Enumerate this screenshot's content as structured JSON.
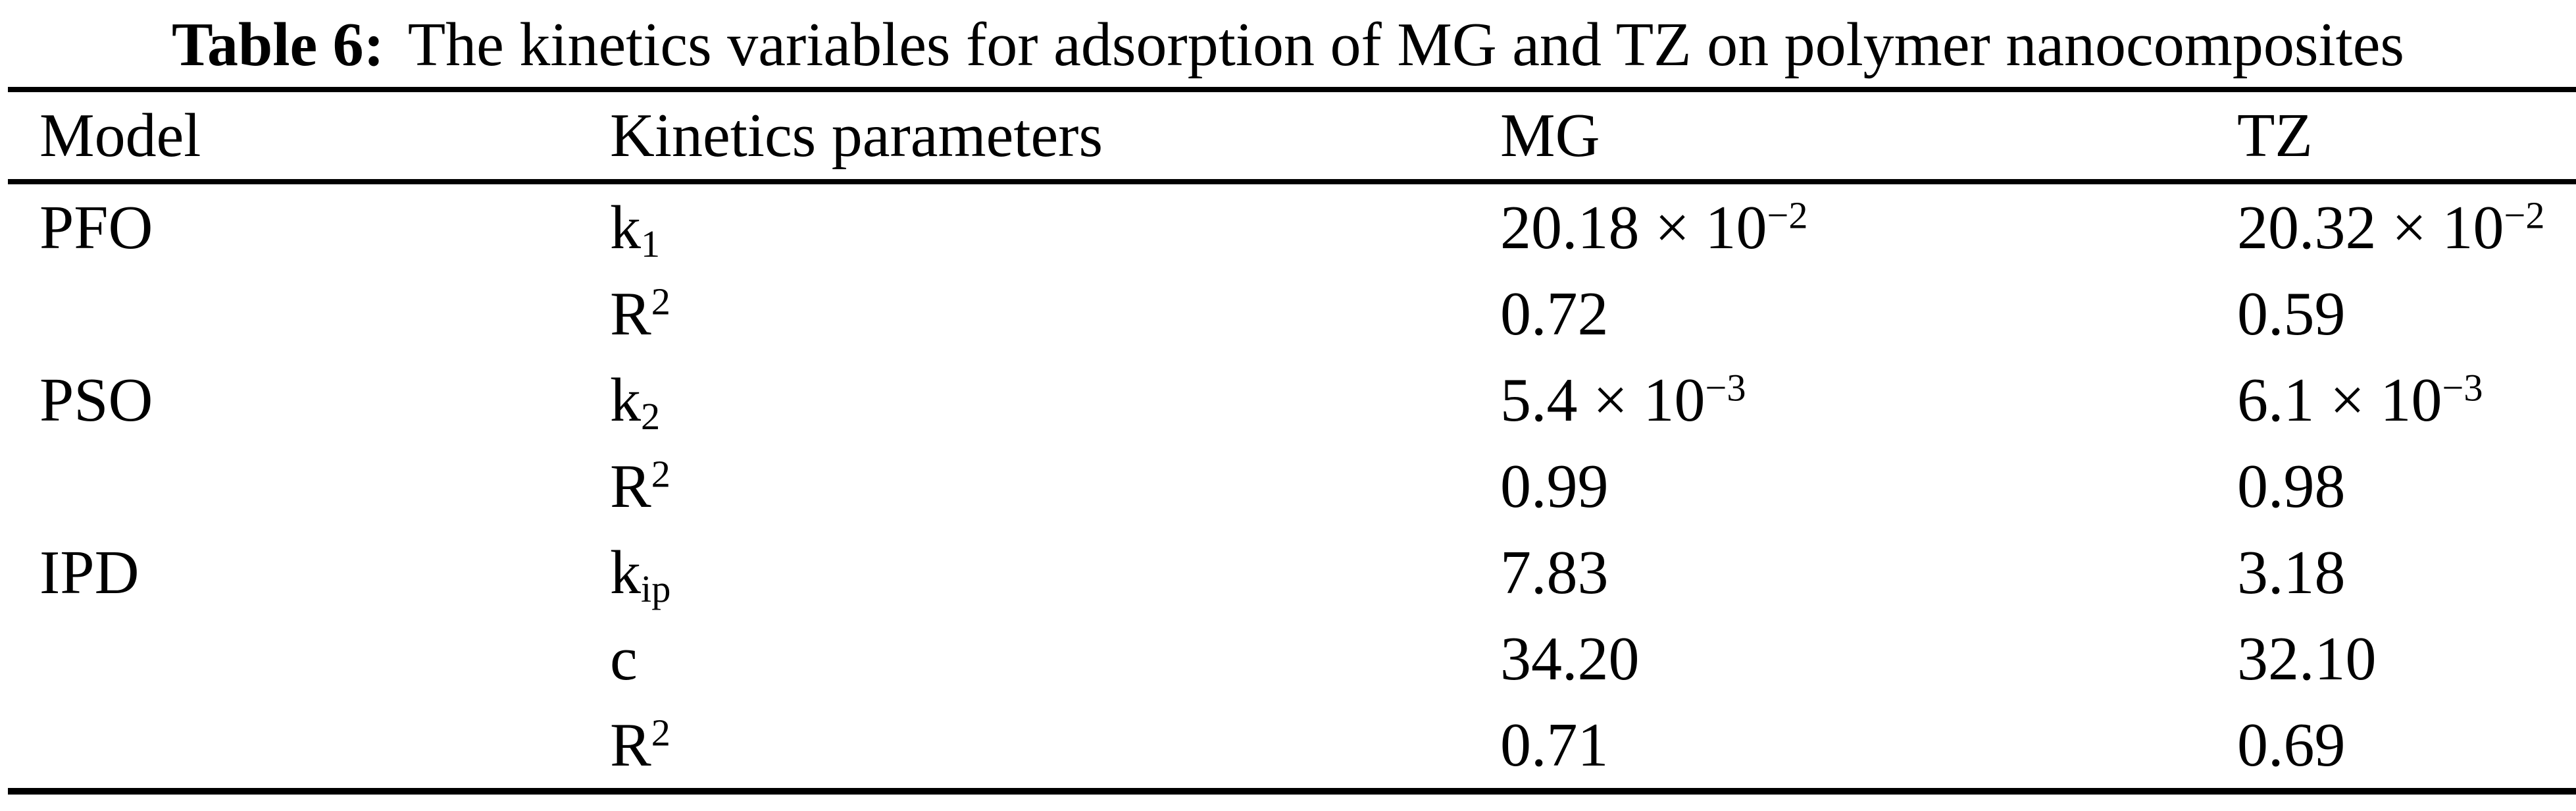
{
  "title": {
    "label": "Table 6:",
    "text": "The kinetics variables for adsorption of MG and TZ on polymer nanocomposites"
  },
  "table": {
    "headers": {
      "model": "Model",
      "param": "Kinetics parameters",
      "mg": "MG",
      "tz": "TZ"
    },
    "rows": [
      {
        "model": "PFO",
        "param": {
          "base": "k",
          "sub": "1"
        },
        "mg": {
          "m": "20.18 × 10",
          "e": "−2"
        },
        "tz": {
          "m": "20.32 × 10",
          "e": "−2"
        }
      },
      {
        "model": "",
        "param": {
          "base": "R",
          "sup": "2"
        },
        "mg": {
          "m": "0.72"
        },
        "tz": {
          "m": "0.59"
        }
      },
      {
        "model": "PSO",
        "param": {
          "base": "k",
          "sub": "2"
        },
        "mg": {
          "m": "5.4 × 10",
          "e": "−3"
        },
        "tz": {
          "m": "6.1 × 10",
          "e": "−3"
        }
      },
      {
        "model": "",
        "param": {
          "base": "R",
          "sup": "2"
        },
        "mg": {
          "m": "0.99"
        },
        "tz": {
          "m": "0.98"
        }
      },
      {
        "model": "IPD",
        "param": {
          "base": "k",
          "sub": "ip"
        },
        "mg": {
          "m": "7.83"
        },
        "tz": {
          "m": "3.18"
        }
      },
      {
        "model": "",
        "param": {
          "base": "c"
        },
        "mg": {
          "m": "34.20"
        },
        "tz": {
          "m": "32.10"
        }
      },
      {
        "model": "",
        "param": {
          "base": "R",
          "sup": "2"
        },
        "mg": {
          "m": "0.71"
        },
        "tz": {
          "m": "0.69"
        }
      }
    ]
  }
}
